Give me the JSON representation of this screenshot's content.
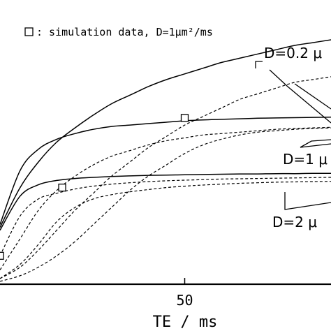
{
  "chart_data": {
    "type": "line",
    "xlabel": "TE / ms",
    "ylabel": "",
    "xlim": [
      -0.5,
      90
    ],
    "ylim": [
      0,
      1
    ],
    "x_ticks": [
      {
        "value": 50,
        "label": "50"
      }
    ],
    "grid": false,
    "legend": {
      "placement": "top-left",
      "marker": "square",
      "text": ": simulation data, D=1μm²/ms"
    },
    "curve_labels": [
      {
        "text": "D=0.2 μ",
        "series": "D=0.2"
      },
      {
        "text": "D=1 μ",
        "series": "D=1"
      },
      {
        "text": "D=2 μ",
        "series": "D=2"
      }
    ],
    "series": [
      {
        "group": "D=0.2",
        "style": "solid",
        "x": [
          -0.5,
          5,
          10,
          15,
          20,
          25,
          30,
          35,
          40,
          45,
          50,
          55,
          60,
          65,
          70,
          75,
          80,
          85,
          90
        ],
        "y": [
          0.2,
          0.34,
          0.43,
          0.5,
          0.55,
          0.595,
          0.635,
          0.665,
          0.695,
          0.72,
          0.74,
          0.76,
          0.78,
          0.795,
          0.81,
          0.825,
          0.84,
          0.85,
          0.86
        ]
      },
      {
        "group": "D=0.2",
        "style": "dashed",
        "x": [
          -0.5,
          5,
          10,
          15,
          20,
          25,
          30,
          35,
          40,
          45,
          50,
          55,
          60,
          65,
          70,
          75,
          80,
          85,
          90
        ],
        "y": [
          0.02,
          0.06,
          0.12,
          0.19,
          0.26,
          0.32,
          0.38,
          0.43,
          0.48,
          0.52,
          0.56,
          0.59,
          0.62,
          0.65,
          0.67,
          0.69,
          0.71,
          0.72,
          0.73
        ]
      },
      {
        "group": "D=1",
        "style": "solid",
        "x": [
          -0.5,
          5,
          10,
          15,
          20,
          25,
          30,
          35,
          40,
          45,
          50,
          55,
          60,
          65,
          70,
          75,
          80,
          85,
          90
        ],
        "y": [
          0.21,
          0.4,
          0.475,
          0.51,
          0.53,
          0.545,
          0.555,
          0.56,
          0.565,
          0.57,
          0.575,
          0.578,
          0.58,
          0.582,
          0.584,
          0.585,
          0.586,
          0.587,
          0.588
        ]
      },
      {
        "group": "D=1",
        "style": "dashed",
        "x": [
          -0.5,
          5,
          10,
          15,
          20,
          25,
          30,
          35,
          40,
          45,
          50,
          55,
          60,
          65,
          70,
          75,
          80,
          85,
          90
        ],
        "y": [
          0.05,
          0.16,
          0.26,
          0.33,
          0.38,
          0.42,
          0.45,
          0.47,
          0.49,
          0.505,
          0.515,
          0.525,
          0.53,
          0.535,
          0.54,
          0.545,
          0.548,
          0.55,
          0.552
        ]
      },
      {
        "group": "D=1",
        "style": "dashed",
        "x": [
          -0.5,
          5,
          10,
          15,
          20,
          25,
          30,
          35,
          40,
          45,
          50,
          55,
          60,
          65,
          70,
          75,
          80,
          85,
          90
        ],
        "y": [
          0.01,
          0.03,
          0.06,
          0.1,
          0.15,
          0.21,
          0.27,
          0.33,
          0.38,
          0.42,
          0.46,
          0.49,
          0.51,
          0.525,
          0.535,
          0.54,
          0.545,
          0.548,
          0.55
        ]
      },
      {
        "group": "D=2",
        "style": "solid",
        "x": [
          -0.5,
          5,
          10,
          15,
          20,
          25,
          30,
          35,
          40,
          45,
          50,
          55,
          60,
          65,
          70,
          75,
          80,
          85,
          90
        ],
        "y": [
          0.19,
          0.31,
          0.35,
          0.365,
          0.372,
          0.376,
          0.379,
          0.381,
          0.383,
          0.384,
          0.385,
          0.386,
          0.387,
          0.388,
          0.388,
          0.389,
          0.389,
          0.39,
          0.39
        ]
      },
      {
        "group": "D=2",
        "style": "dashed",
        "x": [
          -0.5,
          5,
          10,
          15,
          20,
          25,
          30,
          35,
          40,
          45,
          50,
          55,
          60,
          65,
          70,
          75,
          80,
          85,
          90
        ],
        "y": [
          0.1,
          0.24,
          0.3,
          0.32,
          0.335,
          0.345,
          0.352,
          0.357,
          0.361,
          0.364,
          0.366,
          0.368,
          0.37,
          0.371,
          0.372,
          0.373,
          0.374,
          0.375,
          0.376
        ]
      },
      {
        "group": "D=2",
        "style": "dashed",
        "x": [
          -0.5,
          5,
          10,
          15,
          20,
          25,
          30,
          35,
          40,
          45,
          50,
          55,
          60,
          65,
          70,
          75,
          80,
          85,
          90
        ],
        "y": [
          0.02,
          0.07,
          0.14,
          0.22,
          0.27,
          0.3,
          0.315,
          0.325,
          0.333,
          0.34,
          0.345,
          0.349,
          0.352,
          0.355,
          0.357,
          0.359,
          0.36,
          0.361,
          0.362
        ]
      }
    ],
    "points": {
      "name": "simulation data, D=1μm²/ms",
      "marker": "square",
      "x": [
        -0.5,
        16.5,
        50
      ],
      "y": [
        0.1,
        0.34,
        0.585
      ]
    }
  }
}
